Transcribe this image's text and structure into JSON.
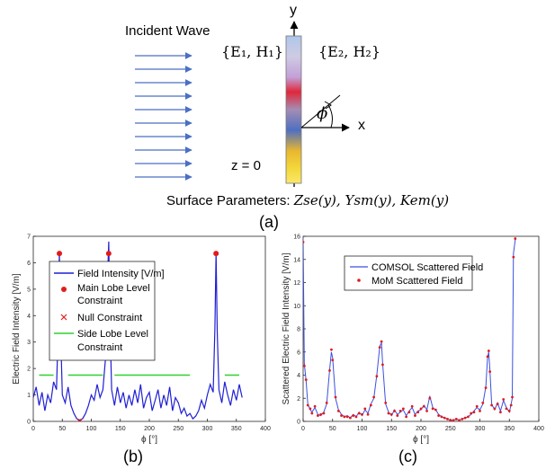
{
  "figure_a": {
    "incident_wave_label": "Incident Wave",
    "field_left": "{E₁, H₁}",
    "field_right": "{E₂, H₂}",
    "z_label": "z = 0",
    "surface_params_label": "Surface Parameters: ",
    "surface_params_math": "Zse(y), Ysm(y), Kem(y)",
    "y_axis": "y",
    "x_axis": "x",
    "angle_symbol": "ϕ",
    "caption": "(a)"
  },
  "figure_b": {
    "caption": "(b)"
  },
  "figure_c": {
    "caption": "(c)"
  },
  "colors": {
    "field_line": "#1f1fd6",
    "main_lobe_marker": "#e11b1b",
    "null_marker": "#e11b1b",
    "side_lobe_line": "#2fd12f",
    "comsol_line": "#3b50e0",
    "mom_marker": "#e11b1b"
  },
  "chart_data": [
    {
      "type": "line",
      "xlabel": "ϕ [°]",
      "ylabel": "Electric Field Intensity [V/m]",
      "xlim": [
        0,
        400
      ],
      "ylim": [
        0,
        7
      ],
      "xticks": [
        0,
        50,
        100,
        150,
        200,
        250,
        300,
        350,
        400
      ],
      "yticks": [
        0,
        1,
        2,
        3,
        4,
        5,
        6,
        7
      ],
      "grid": false,
      "legend_position": "top-left",
      "series": [
        {
          "name": "Field Intensity [V/m]",
          "x": [
            0,
            5,
            10,
            15,
            20,
            25,
            30,
            35,
            40,
            43,
            45,
            47,
            50,
            55,
            60,
            65,
            70,
            75,
            80,
            85,
            90,
            95,
            100,
            105,
            110,
            115,
            120,
            125,
            128,
            130,
            132,
            135,
            140,
            145,
            150,
            155,
            160,
            165,
            170,
            175,
            180,
            185,
            190,
            195,
            200,
            205,
            210,
            215,
            220,
            225,
            230,
            235,
            240,
            245,
            250,
            255,
            260,
            265,
            270,
            275,
            280,
            285,
            290,
            295,
            300,
            305,
            310,
            313,
            315,
            317,
            320,
            325,
            330,
            335,
            340,
            345,
            350,
            355,
            360
          ],
          "values": [
            0.9,
            1.3,
            0.6,
            1.1,
            0.4,
            1.0,
            0.7,
            1.5,
            1.2,
            3.5,
            6.4,
            3.5,
            1.0,
            0.7,
            1.3,
            0.6,
            0.3,
            0.1,
            0.05,
            0.1,
            0.3,
            0.6,
            1.0,
            0.8,
            1.4,
            0.9,
            1.2,
            2.5,
            5.5,
            6.8,
            4.0,
            1.2,
            0.6,
            1.3,
            0.7,
            1.1,
            0.5,
            1.0,
            0.6,
            1.2,
            0.7,
            1.4,
            0.5,
            0.9,
            1.1,
            0.4,
            0.8,
            1.2,
            0.5,
            1.0,
            0.6,
            1.3,
            0.4,
            0.9,
            0.7,
            0.3,
            0.5,
            0.2,
            0.3,
            0.1,
            0.2,
            0.4,
            0.8,
            0.5,
            1.0,
            1.4,
            1.1,
            3.5,
            6.4,
            3.4,
            1.2,
            0.7,
            1.5,
            1.0,
            0.6,
            1.2,
            0.8,
            1.4,
            0.9
          ]
        },
        {
          "name": "Main Lobe Level Constraint",
          "x": [
            45,
            130,
            315
          ],
          "values": [
            6.35,
            6.35,
            6.35
          ]
        },
        {
          "name": "Null Constraint",
          "x": [
            80
          ],
          "values": [
            0.0
          ]
        },
        {
          "name": "Side Lobe Level Constraint",
          "segments": [
            [
              10,
              35,
              1.75
            ],
            [
              60,
              120,
              1.75
            ],
            [
              140,
              270,
              1.75
            ],
            [
              330,
              355,
              1.75
            ]
          ]
        }
      ]
    },
    {
      "type": "line",
      "xlabel": "ϕ [°]",
      "ylabel": "Scattered Electric Field Intensity [V/m]",
      "xlim": [
        0,
        400
      ],
      "ylim": [
        0,
        16
      ],
      "xticks": [
        0,
        50,
        100,
        150,
        200,
        250,
        300,
        350,
        400
      ],
      "yticks": [
        0,
        2,
        4,
        6,
        8,
        10,
        12,
        14,
        16
      ],
      "grid": false,
      "legend_position": "top-left",
      "series": [
        {
          "name": "COMSOL Scattered Field",
          "x": [
            0,
            2,
            5,
            8,
            12,
            15,
            20,
            25,
            30,
            35,
            40,
            45,
            48,
            50,
            55,
            60,
            65,
            70,
            75,
            80,
            85,
            90,
            95,
            100,
            105,
            110,
            115,
            120,
            125,
            130,
            133,
            135,
            140,
            145,
            150,
            155,
            160,
            165,
            170,
            175,
            180,
            185,
            190,
            195,
            200,
            205,
            210,
            215,
            220,
            225,
            230,
            235,
            240,
            245,
            250,
            255,
            260,
            265,
            270,
            275,
            280,
            285,
            290,
            295,
            300,
            305,
            310,
            313,
            315,
            317,
            320,
            325,
            330,
            335,
            340,
            345,
            350,
            353,
            355,
            357,
            360
          ],
          "values": [
            15.8,
            5.0,
            3.5,
            1.5,
            1.0,
            0.8,
            1.2,
            0.6,
            0.5,
            0.8,
            1.5,
            4.5,
            6.0,
            5.5,
            2.0,
            1.0,
            0.6,
            0.4,
            0.5,
            0.3,
            0.6,
            0.4,
            0.8,
            0.5,
            1.0,
            0.7,
            1.5,
            2.0,
            4.0,
            6.5,
            6.8,
            5.0,
            1.5,
            0.8,
            0.5,
            1.0,
            0.6,
            0.8,
            1.0,
            0.5,
            0.9,
            1.2,
            0.6,
            0.9,
            1.0,
            1.4,
            1.0,
            2.2,
            1.2,
            1.0,
            0.6,
            0.4,
            0.3,
            0.2,
            0.1,
            0.1,
            0.2,
            0.1,
            0.2,
            0.3,
            0.4,
            0.6,
            0.9,
            1.2,
            1.0,
            1.5,
            3.0,
            5.5,
            6.0,
            4.5,
            1.5,
            1.0,
            1.6,
            0.9,
            1.8,
            1.2,
            0.8,
            1.5,
            2.0,
            14.5,
            15.7
          ]
        },
        {
          "name": "MoM Scattered Field",
          "x": [
            0,
            2,
            5,
            8,
            12,
            15,
            20,
            25,
            30,
            35,
            40,
            45,
            48,
            50,
            55,
            60,
            65,
            70,
            75,
            80,
            85,
            90,
            95,
            100,
            105,
            110,
            115,
            120,
            125,
            130,
            133,
            135,
            140,
            145,
            150,
            155,
            160,
            165,
            170,
            175,
            180,
            185,
            190,
            195,
            200,
            205,
            210,
            215,
            220,
            225,
            230,
            235,
            240,
            245,
            250,
            255,
            260,
            265,
            270,
            275,
            280,
            285,
            290,
            295,
            300,
            305,
            310,
            313,
            315,
            317,
            320,
            325,
            330,
            335,
            340,
            345,
            350,
            353,
            355,
            357,
            360
          ],
          "values": [
            15.5,
            4.8,
            3.6,
            1.4,
            1.1,
            0.7,
            1.3,
            0.5,
            0.6,
            0.7,
            1.6,
            4.4,
            6.2,
            5.3,
            2.1,
            0.9,
            0.5,
            0.4,
            0.4,
            0.3,
            0.5,
            0.4,
            0.7,
            0.6,
            1.1,
            0.6,
            1.4,
            2.1,
            3.9,
            6.4,
            6.9,
            4.9,
            1.6,
            0.7,
            0.6,
            0.9,
            0.5,
            0.9,
            1.1,
            0.4,
            0.8,
            1.3,
            0.5,
            0.8,
            1.1,
            1.3,
            0.9,
            2.0,
            1.1,
            1.0,
            0.5,
            0.4,
            0.3,
            0.2,
            0.1,
            0.1,
            0.2,
            0.1,
            0.2,
            0.3,
            0.4,
            0.7,
            0.8,
            1.3,
            0.9,
            1.6,
            2.9,
            5.6,
            6.1,
            4.3,
            1.4,
            1.1,
            1.5,
            0.8,
            1.9,
            1.1,
            0.9,
            1.4,
            2.1,
            14.2,
            15.8
          ]
        }
      ]
    }
  ]
}
